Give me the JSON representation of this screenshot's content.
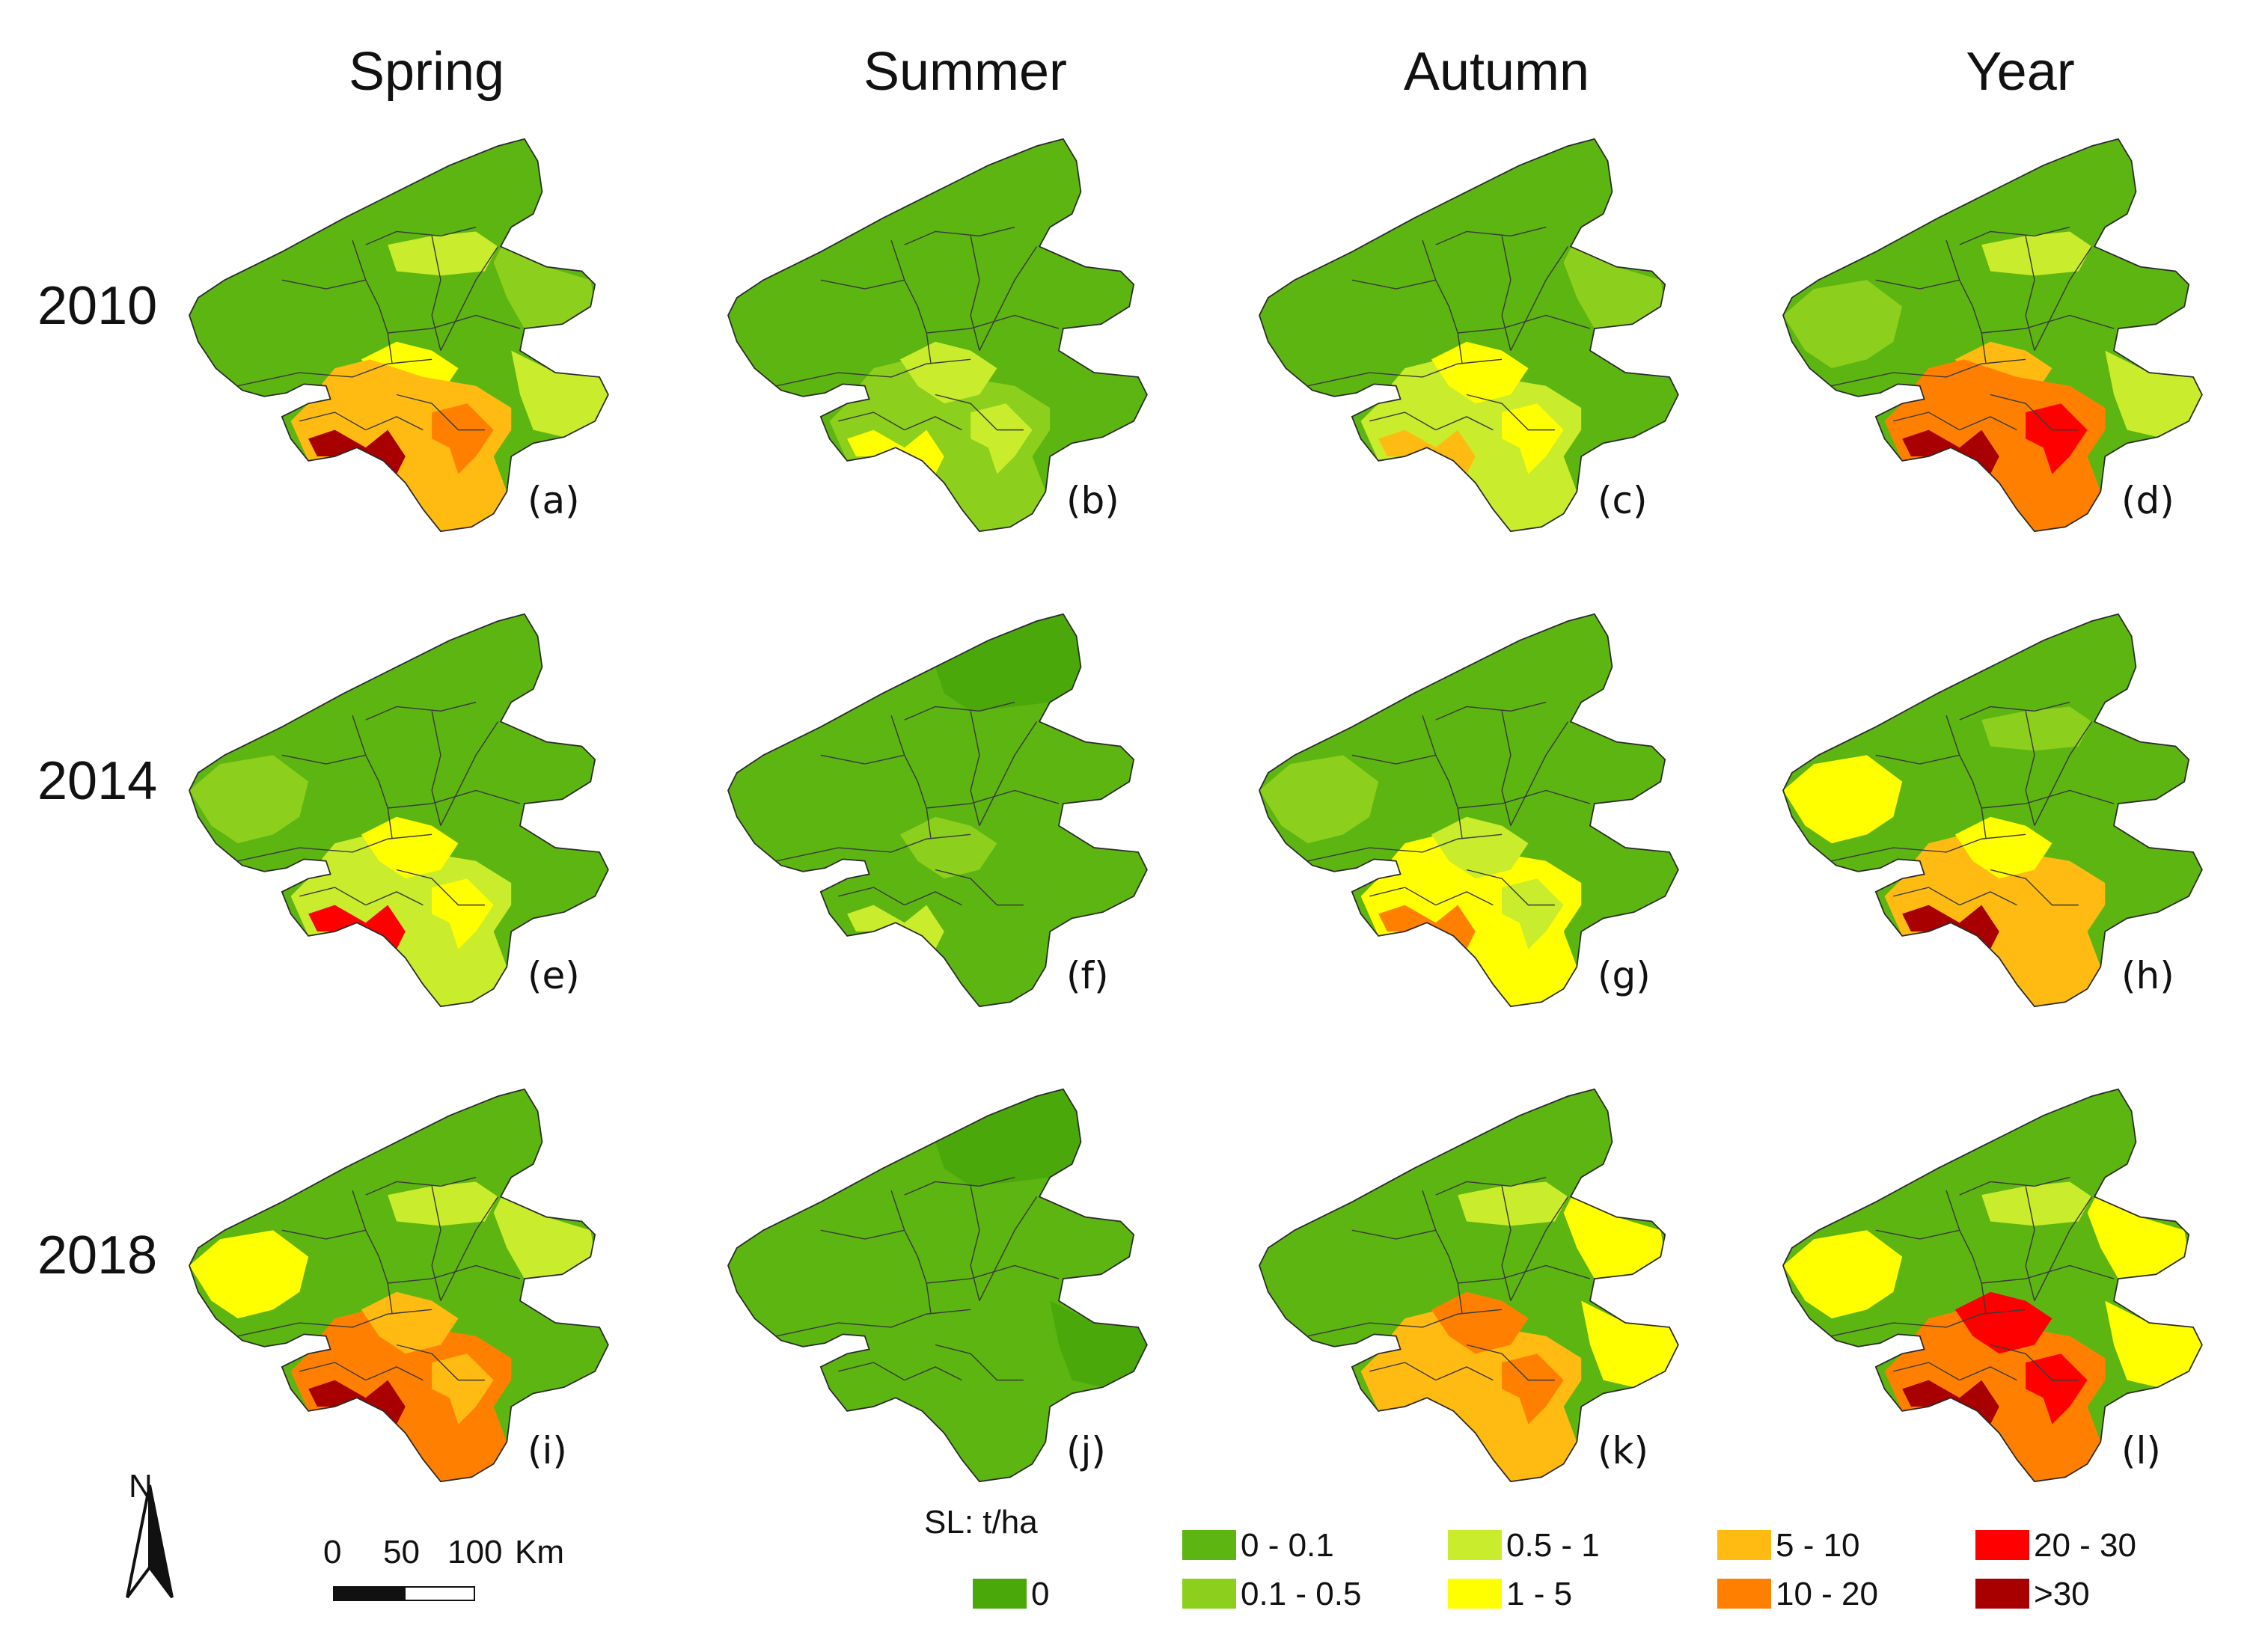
{
  "column_headers": [
    "Spring",
    "Summer",
    "Autumn",
    "Year"
  ],
  "row_headers": [
    "2010",
    "2014",
    "2018"
  ],
  "panel_labels": [
    "(a)",
    "(b)",
    "(c)",
    "(d)",
    "(e)",
    "(f)",
    "(g)",
    "(h)",
    "(i)",
    "(j)",
    "(k)",
    "(l)"
  ],
  "legend": {
    "title": "SL: t/ha",
    "classes": [
      {
        "label": "0",
        "color": "#4aa80a"
      },
      {
        "label": "0 - 0.1",
        "color": "#5db512"
      },
      {
        "label": "0.1 - 0.5",
        "color": "#8ccf1c"
      },
      {
        "label": "0.5 - 1",
        "color": "#c9ec2c"
      },
      {
        "label": "1 - 5",
        "color": "#ffff00"
      },
      {
        "label": "5 - 10",
        "color": "#ffbb11"
      },
      {
        "label": "10 - 20",
        "color": "#ff8000"
      },
      {
        "label": "20 - 30",
        "color": "#ff0000"
      },
      {
        "label": ">30",
        "color": "#a80000"
      }
    ]
  },
  "north_arrow": {
    "label": "N",
    "icon": "north-arrow-icon"
  },
  "scale_bar": {
    "labels": [
      "0",
      "50",
      "100"
    ],
    "unit": "Km"
  }
}
